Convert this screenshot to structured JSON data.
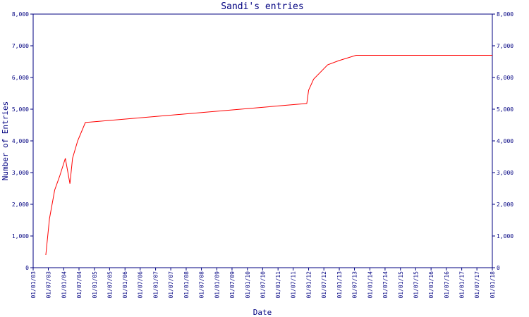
{
  "chart_data": {
    "type": "line",
    "title": "Sandi's entries",
    "x_label": "Date",
    "y_label": "Number of Entries",
    "x": [
      "2003-06-01",
      "2003-07-15",
      "2003-09-15",
      "2003-11-15",
      "2004-01-20",
      "2004-03-15",
      "2004-04-15",
      "2004-06-15",
      "2004-09-15",
      "2011-12-10",
      "2012-01-01",
      "2012-03-01",
      "2012-08-15",
      "2012-12-25",
      "2013-07-20",
      "2018-01-01"
    ],
    "series": [
      {
        "name": "Sandi",
        "color": "#ff0000",
        "values": [
          400,
          1550,
          2450,
          2900,
          3450,
          2650,
          3450,
          4000,
          4580,
          5180,
          5600,
          5950,
          6400,
          6530,
          6700,
          6700
        ]
      }
    ],
    "xlim": [
      "2003-01-01",
      "2018-01-01"
    ],
    "xticks": [
      {
        "value": "2003-01-01",
        "label": "01/01/03"
      },
      {
        "value": "2003-07-01",
        "label": "01/07/03"
      },
      {
        "value": "2004-01-01",
        "label": "01/01/04"
      },
      {
        "value": "2004-07-01",
        "label": "01/07/04"
      },
      {
        "value": "2005-01-01",
        "label": "01/01/05"
      },
      {
        "value": "2005-07-01",
        "label": "01/07/05"
      },
      {
        "value": "2006-01-01",
        "label": "01/01/06"
      },
      {
        "value": "2006-07-01",
        "label": "01/07/06"
      },
      {
        "value": "2007-01-01",
        "label": "01/01/07"
      },
      {
        "value": "2007-07-01",
        "label": "01/07/07"
      },
      {
        "value": "2008-01-01",
        "label": "01/01/08"
      },
      {
        "value": "2008-07-01",
        "label": "01/07/08"
      },
      {
        "value": "2009-01-01",
        "label": "01/01/09"
      },
      {
        "value": "2009-07-01",
        "label": "01/07/09"
      },
      {
        "value": "2010-01-01",
        "label": "01/01/10"
      },
      {
        "value": "2010-07-01",
        "label": "01/07/10"
      },
      {
        "value": "2011-01-01",
        "label": "01/01/11"
      },
      {
        "value": "2011-07-01",
        "label": "01/07/11"
      },
      {
        "value": "2012-01-01",
        "label": "01/01/12"
      },
      {
        "value": "2012-07-01",
        "label": "01/07/12"
      },
      {
        "value": "2013-01-01",
        "label": "01/01/13"
      },
      {
        "value": "2013-07-01",
        "label": "01/07/13"
      },
      {
        "value": "2014-01-01",
        "label": "01/01/14"
      },
      {
        "value": "2014-07-01",
        "label": "01/07/14"
      },
      {
        "value": "2015-01-01",
        "label": "01/01/15"
      },
      {
        "value": "2015-07-01",
        "label": "01/07/15"
      },
      {
        "value": "2016-01-01",
        "label": "01/01/16"
      },
      {
        "value": "2016-07-01",
        "label": "01/07/16"
      },
      {
        "value": "2017-01-01",
        "label": "01/01/17"
      },
      {
        "value": "2017-07-01",
        "label": "01/07/17"
      },
      {
        "value": "2018-01-01",
        "label": "01/01/18"
      }
    ],
    "ylim": [
      0,
      8000
    ],
    "yticks": [
      0,
      {
        "value": 1000,
        "label": "1,000"
      },
      {
        "value": 2000,
        "label": "2,000"
      },
      {
        "value": 3000,
        "label": "3,000"
      },
      {
        "value": 4000,
        "label": "4,000"
      },
      {
        "value": 5000,
        "label": "5,000"
      },
      {
        "value": 6000,
        "label": "6,000"
      },
      {
        "value": 7000,
        "label": "7,000"
      },
      {
        "value": 8000,
        "label": "8,000"
      }
    ],
    "y2lim": [
      0,
      8000
    ],
    "y2ticks": [
      0,
      {
        "value": 1000,
        "label": "1,000"
      },
      {
        "value": 2000,
        "label": "2,000"
      },
      {
        "value": 3000,
        "label": "3,000"
      },
      {
        "value": 4000,
        "label": "4,000"
      },
      {
        "value": 5000,
        "label": "5,000"
      },
      {
        "value": 6000,
        "label": "6,000"
      },
      {
        "value": 7000,
        "label": "7,000"
      },
      {
        "value": 8000,
        "label": "8,000"
      }
    ],
    "grid": false
  }
}
